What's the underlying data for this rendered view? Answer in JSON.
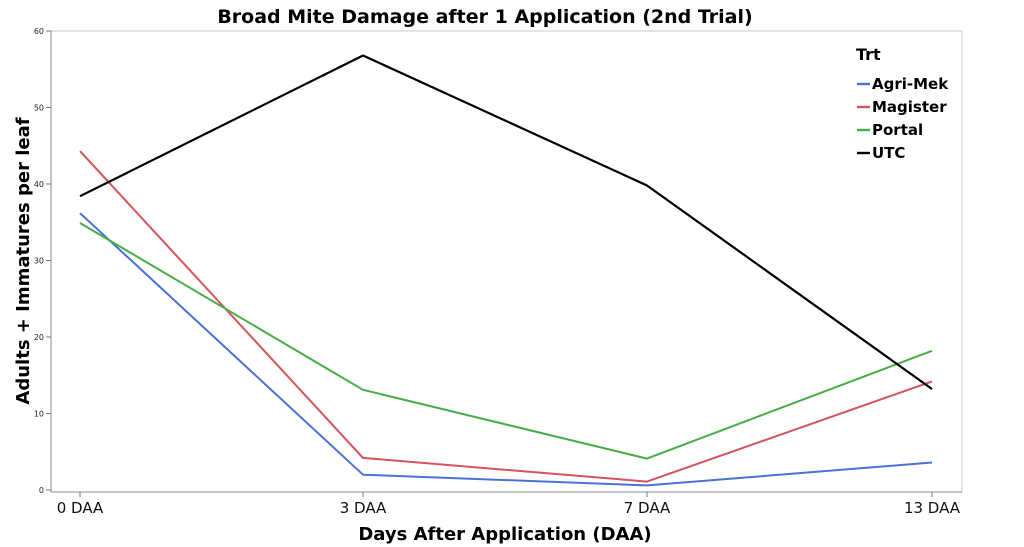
{
  "chart_data": {
    "type": "line",
    "title": "Broad Mite Damage after 1 Application (2nd Trial)",
    "xlabel": "Days After Application (DAA)",
    "ylabel": "Adults + Immatures per leaf",
    "categories": [
      "0 DAA",
      "3 DAA",
      "7 DAA",
      "13 DAA"
    ],
    "ylim": [
      0,
      60
    ],
    "yticks": [
      0,
      10,
      20,
      30,
      40,
      50,
      60
    ],
    "grid": false,
    "legend": {
      "title": "Trt",
      "position": "top-right"
    },
    "series": [
      {
        "name": "Agri-Mek",
        "color": "#4a72d6",
        "values": [
          36.2,
          2.0,
          0.6,
          3.6
        ]
      },
      {
        "name": "Magister",
        "color": "#d4545c",
        "values": [
          44.3,
          4.2,
          1.1,
          14.2
        ]
      },
      {
        "name": "Portal",
        "color": "#47ad47",
        "values": [
          34.9,
          13.1,
          4.1,
          18.2
        ]
      },
      {
        "name": "UTC",
        "color": "#000000",
        "values": [
          38.4,
          56.8,
          39.8,
          13.2
        ]
      }
    ]
  }
}
